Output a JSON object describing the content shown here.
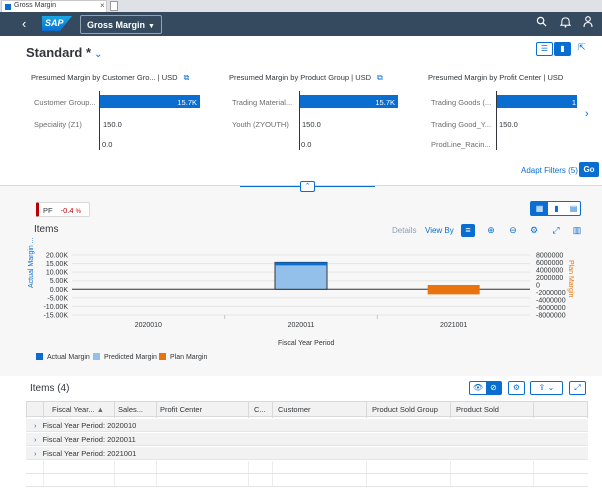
{
  "browser_tab": {
    "title": "Gross Margin",
    "close": "×"
  },
  "shell": {
    "logo": "SAP",
    "app_title": "Gross Margin",
    "back": "‹",
    "search_icon": "search-icon",
    "bell_icon": "bell-icon",
    "user_icon": "user-icon"
  },
  "header": {
    "variant": "Standard *",
    "adapt_filters": "Adapt Filters (5)",
    "go": "Go"
  },
  "cards": [
    {
      "title": "Presumed Margin by Customer Gro...",
      "unit": "| USD",
      "rows": [
        {
          "label": "Customer Group...",
          "value": "15.7K",
          "fraction": 1.0
        },
        {
          "label": "Speciality (Z1)",
          "value": "150.0",
          "fraction": 0.01
        },
        {
          "label": "",
          "value": "0.0",
          "fraction": 0
        }
      ]
    },
    {
      "title": "Presumed Margin by Product Group",
      "unit": "| USD",
      "rows": [
        {
          "label": "Trading Material...",
          "value": "15.7K",
          "fraction": 1.0
        },
        {
          "label": "Youth (ZYOUTH)",
          "value": "150.0",
          "fraction": 0.01
        },
        {
          "label": "",
          "value": "0.0",
          "fraction": 0
        }
      ]
    },
    {
      "title": "Presumed Margin by Profit Center",
      "unit": "| USD",
      "rows": [
        {
          "label": "Trading Goods (...",
          "value": "1",
          "fraction": 1.0
        },
        {
          "label": "Trading Good_Y...",
          "value": "150.0",
          "fraction": 0.01
        },
        {
          "label": "ProdLine_Racin...",
          "value": "",
          "fraction": 0
        }
      ]
    }
  ],
  "kpi": {
    "label": "PF",
    "value": "-0.4",
    "unit": "%"
  },
  "chart_toolbar": {
    "title": "Items",
    "details": "Details",
    "view_by": "View By"
  },
  "chart_data": {
    "type": "bar",
    "categories": [
      "2020010",
      "2020011",
      "2021001"
    ],
    "xlabel": "Fiscal Year Period",
    "ylabel_left": "Actual Margin ...",
    "ylabel_right": "Plan Margin",
    "yticks_left": [
      "20.00K",
      "15.00K",
      "10.00K",
      "5.00K",
      "0.00K",
      "-5.00K",
      "-10.00K",
      "-15.00K"
    ],
    "yticks_right": [
      "8000000",
      "6000000",
      "4000000",
      "2000000",
      "0",
      "-2000000",
      "-4000000",
      "-6000000",
      "-8000000"
    ],
    "ylim_left": [
      -15000,
      20000
    ],
    "ylim_right": [
      -8000000,
      8000000
    ],
    "series": [
      {
        "name": "Actual Margin",
        "color": "#0a6ed1",
        "values": [
          0,
          15700,
          0
        ]
      },
      {
        "name": "Predicted Margin",
        "color": "#92c0eb",
        "values": [
          0,
          14800,
          0
        ]
      },
      {
        "name": "Plan Margin",
        "color": "#e9730c",
        "values": [
          0,
          0,
          -2500000
        ]
      }
    ]
  },
  "table": {
    "title": "Items (4)",
    "columns": [
      "Fiscal Year...",
      "Sales...",
      "Profit Center",
      "C...",
      "Customer",
      "Product Sold Group",
      "Product Sold"
    ],
    "groups": [
      "Fiscal Year Period: 2020010",
      "Fiscal Year Period: 2020011",
      "Fiscal Year Period: 2021001"
    ]
  }
}
